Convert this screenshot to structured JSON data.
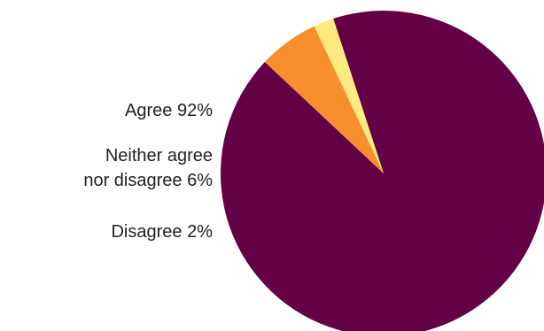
{
  "chart_data": {
    "type": "pie",
    "title": "",
    "start_angle_deg": 252,
    "slices": [
      {
        "label": "Agree 92%",
        "value": 92,
        "color": "#640046"
      },
      {
        "label": "Neither agree\nnor disagree 6%",
        "value": 6,
        "color": "#f78f2e"
      },
      {
        "label": "Disagree 2%",
        "value": 2,
        "color": "#ffea80"
      }
    ],
    "legend_position": "left"
  }
}
